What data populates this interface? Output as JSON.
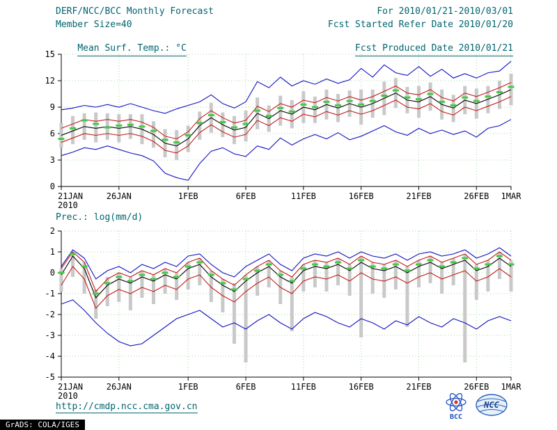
{
  "header": {
    "title": "DERF/NCC/BCC Monthly Forecast",
    "period": "For 2010/01/21-2010/03/01",
    "member_size": "Member Size=40",
    "refer_date": "Fcst Started Refer Date 2010/01/20",
    "variable_top": "Mean Surf. Temp.: °C",
    "produced_date": "Fcst Produced Date 2010/01/21"
  },
  "footer": {
    "url": "http://cmdp.ncc.cma.gov.cn",
    "grads": "GrADS: COLA/IGES",
    "bcc_label": "BCC",
    "ncc_label": "NCC"
  },
  "colors": {
    "text_teal": "#00646e",
    "axis": "#000000",
    "tick_label": "#000000",
    "grid": "#9fd49f",
    "bar": "#c9c9c9",
    "blue": "#1010c0",
    "red": "#c41a1a",
    "green": "#46c846",
    "mean": "#000000"
  },
  "chart_data": [
    {
      "type": "line",
      "title": "Mean Surf. Temp.: °C",
      "ylabel": "",
      "ylim": [
        0,
        15
      ],
      "yticks": [
        0,
        3,
        6,
        9,
        12,
        15
      ],
      "grid": true,
      "x_count": 40,
      "x_tick_labels": [
        "21JAN",
        "26JAN",
        "1FEB",
        "6FEB",
        "11FEB",
        "16FEB",
        "21FEB",
        "26FEB",
        "1MAR"
      ],
      "x_tick_indices": [
        0,
        5,
        11,
        16,
        21,
        26,
        31,
        36,
        39
      ],
      "x_year_label": "2010",
      "series": [
        {
          "name": "ensemble-max",
          "color": "#1010c0",
          "values": [
            8.7,
            8.9,
            9.2,
            9.0,
            9.3,
            9.0,
            9.4,
            9.0,
            8.6,
            8.3,
            8.8,
            9.2,
            9.6,
            10.4,
            9.4,
            8.9,
            9.6,
            11.9,
            11.2,
            12.4,
            11.4,
            12.0,
            11.6,
            12.2,
            11.7,
            12.1,
            13.4,
            12.4,
            13.8,
            12.9,
            12.6,
            13.6,
            12.5,
            13.3,
            12.3,
            12.8,
            12.3,
            12.9,
            13.1,
            14.2
          ]
        },
        {
          "name": "upper-bound",
          "color": "#c41a1a",
          "values": [
            6.6,
            7.1,
            7.6,
            7.4,
            7.6,
            7.4,
            7.6,
            7.3,
            6.7,
            5.7,
            5.4,
            6.2,
            7.7,
            8.6,
            7.8,
            7.2,
            7.5,
            9.1,
            8.5,
            9.4,
            9.0,
            9.8,
            9.5,
            10.1,
            9.7,
            10.2,
            9.8,
            10.2,
            10.8,
            11.4,
            10.6,
            10.4,
            11.0,
            10.1,
            9.7,
            10.6,
            10.2,
            10.7,
            11.2,
            11.8
          ]
        },
        {
          "name": "ensemble-mean",
          "color": "#000000",
          "values": [
            5.8,
            6.3,
            6.8,
            6.6,
            6.8,
            6.6,
            6.8,
            6.5,
            5.9,
            4.9,
            4.6,
            5.4,
            6.9,
            7.8,
            7.0,
            6.4,
            6.7,
            8.3,
            7.7,
            8.6,
            8.2,
            9.0,
            8.7,
            9.3,
            8.9,
            9.4,
            9.0,
            9.4,
            10.0,
            10.6,
            9.8,
            9.6,
            10.2,
            9.3,
            8.9,
            9.8,
            9.4,
            9.9,
            10.4,
            11.0
          ]
        },
        {
          "name": "lower-bound",
          "color": "#c41a1a",
          "values": [
            5.0,
            5.5,
            6.0,
            5.8,
            6.0,
            5.8,
            6.0,
            5.7,
            5.1,
            4.1,
            3.8,
            4.6,
            6.1,
            7.0,
            6.2,
            5.6,
            5.9,
            7.5,
            6.9,
            7.8,
            7.4,
            8.2,
            7.9,
            8.5,
            8.1,
            8.6,
            8.2,
            8.6,
            9.2,
            9.8,
            9.0,
            8.8,
            9.4,
            8.5,
            8.1,
            9.0,
            8.6,
            9.1,
            9.6,
            10.2
          ]
        },
        {
          "name": "ensemble-min",
          "color": "#1010c0",
          "values": [
            3.5,
            3.9,
            4.4,
            4.2,
            4.6,
            4.2,
            3.8,
            3.5,
            2.9,
            1.5,
            1.0,
            0.7,
            2.6,
            4.0,
            4.4,
            3.7,
            3.4,
            4.6,
            4.2,
            5.5,
            4.7,
            5.4,
            5.9,
            5.4,
            6.1,
            5.3,
            5.7,
            6.3,
            6.9,
            6.2,
            5.8,
            6.6,
            6.0,
            6.4,
            5.9,
            6.3,
            5.6,
            6.6,
            6.9,
            7.6
          ]
        }
      ],
      "markers": {
        "name": "best-estimate",
        "color": "#46c846",
        "values": [
          5.4,
          6.6,
          7.5,
          7.1,
          6.7,
          6.9,
          7.0,
          6.8,
          6.3,
          5.3,
          5.0,
          5.8,
          7.2,
          8.1,
          7.3,
          6.7,
          7.1,
          8.6,
          8.0,
          8.9,
          8.5,
          9.3,
          9.0,
          9.6,
          9.2,
          9.7,
          9.3,
          9.7,
          10.3,
          10.9,
          10.1,
          9.9,
          10.5,
          9.6,
          9.2,
          10.1,
          9.7,
          10.2,
          10.7,
          11.3
        ]
      },
      "spread_bars": {
        "color": "#c9c9c9",
        "high": [
          7.2,
          8.0,
          8.3,
          8.4,
          8.3,
          8.2,
          8.2,
          8.2,
          7.4,
          6.5,
          6.4,
          6.9,
          8.5,
          9.5,
          8.4,
          8.0,
          8.6,
          10.1,
          9.2,
          10.3,
          9.8,
          10.8,
          10.2,
          11.0,
          10.5,
          10.9,
          11.0,
          11.0,
          11.9,
          12.3,
          11.3,
          11.4,
          11.8,
          11.0,
          10.4,
          11.4,
          11.1,
          11.4,
          12.0,
          12.8
        ],
        "low": [
          4.4,
          4.8,
          5.3,
          5.0,
          5.3,
          5.0,
          5.4,
          4.8,
          4.4,
          3.3,
          3.0,
          3.9,
          5.3,
          6.1,
          5.6,
          4.8,
          5.1,
          6.5,
          6.2,
          6.9,
          6.6,
          7.2,
          7.2,
          7.6,
          7.3,
          7.9,
          7.0,
          7.8,
          8.1,
          8.9,
          8.3,
          7.8,
          8.6,
          7.6,
          7.3,
          8.2,
          7.7,
          8.3,
          8.8,
          9.2
        ]
      }
    },
    {
      "type": "line",
      "title": "Prec.: log(mm/d)",
      "ylabel": "",
      "ylim": [
        -5,
        2
      ],
      "yticks": [
        -5,
        -4,
        -3,
        -2,
        -1,
        0,
        1,
        2
      ],
      "grid": true,
      "x_count": 40,
      "x_tick_labels": [
        "21JAN",
        "26JAN",
        "1FEB",
        "6FEB",
        "11FEB",
        "16FEB",
        "21FEB",
        "26FEB",
        "1MAR"
      ],
      "x_tick_indices": [
        0,
        5,
        11,
        16,
        21,
        26,
        31,
        36,
        39
      ],
      "x_year_label": "2010",
      "series": [
        {
          "name": "ensemble-max",
          "color": "#1010c0",
          "values": [
            0.3,
            1.1,
            0.7,
            -0.3,
            0.1,
            0.3,
            0.0,
            0.4,
            0.2,
            0.5,
            0.3,
            0.8,
            0.9,
            0.4,
            0.0,
            -0.2,
            0.3,
            0.6,
            0.9,
            0.4,
            0.1,
            0.7,
            0.9,
            0.8,
            1.0,
            0.7,
            1.0,
            0.8,
            0.7,
            0.9,
            0.6,
            0.9,
            1.0,
            0.8,
            0.9,
            1.1,
            0.7,
            0.9,
            1.2,
            0.8
          ]
        },
        {
          "name": "upper-bound",
          "color": "#c41a1a",
          "values": [
            0.2,
            1.0,
            0.5,
            -0.9,
            -0.3,
            0.0,
            -0.2,
            0.1,
            -0.1,
            0.2,
            0.0,
            0.5,
            0.7,
            0.1,
            -0.3,
            -0.6,
            -0.1,
            0.3,
            0.6,
            0.1,
            -0.2,
            0.4,
            0.6,
            0.5,
            0.7,
            0.4,
            0.8,
            0.5,
            0.4,
            0.6,
            0.3,
            0.6,
            0.8,
            0.5,
            0.7,
            0.9,
            0.4,
            0.6,
            1.0,
            0.6
          ]
        },
        {
          "name": "ensemble-mean",
          "color": "#000000",
          "values": [
            -0.1,
            0.8,
            0.2,
            -1.2,
            -0.6,
            -0.3,
            -0.5,
            -0.2,
            -0.4,
            -0.1,
            -0.3,
            0.2,
            0.4,
            -0.2,
            -0.6,
            -0.9,
            -0.4,
            0.0,
            0.3,
            -0.2,
            -0.5,
            0.1,
            0.3,
            0.2,
            0.4,
            0.1,
            0.5,
            0.2,
            0.1,
            0.3,
            0.0,
            0.3,
            0.5,
            0.2,
            0.4,
            0.6,
            0.1,
            0.3,
            0.7,
            0.3
          ]
        },
        {
          "name": "lower-bound",
          "color": "#c41a1a",
          "values": [
            -0.6,
            0.3,
            -0.3,
            -1.7,
            -1.1,
            -0.8,
            -1.0,
            -0.7,
            -0.9,
            -0.6,
            -0.8,
            -0.3,
            -0.1,
            -0.7,
            -1.1,
            -1.4,
            -0.9,
            -0.5,
            -0.2,
            -0.7,
            -1.0,
            -0.4,
            -0.2,
            -0.3,
            -0.1,
            -0.4,
            0.0,
            -0.3,
            -0.4,
            -0.2,
            -0.5,
            -0.2,
            0.0,
            -0.3,
            -0.1,
            0.1,
            -0.4,
            -0.2,
            0.2,
            -0.2
          ]
        },
        {
          "name": "ensemble-min",
          "color": "#1010c0",
          "values": [
            -1.5,
            -1.3,
            -1.8,
            -2.4,
            -2.9,
            -3.3,
            -3.5,
            -3.4,
            -3.0,
            -2.6,
            -2.2,
            -2.0,
            -1.8,
            -2.2,
            -2.6,
            -2.4,
            -2.7,
            -2.3,
            -2.0,
            -2.4,
            -2.7,
            -2.2,
            -1.9,
            -2.1,
            -2.4,
            -2.6,
            -2.2,
            -2.4,
            -2.7,
            -2.3,
            -2.5,
            -2.1,
            -2.4,
            -2.6,
            -2.2,
            -2.4,
            -2.7,
            -2.3,
            -2.1,
            -2.3
          ]
        }
      ],
      "markers": {
        "name": "best-estimate",
        "color": "#46c846",
        "values": [
          0.0,
          0.9,
          0.3,
          -1.0,
          -0.5,
          -0.2,
          -0.4,
          -0.1,
          -0.3,
          0.0,
          -0.2,
          0.3,
          0.5,
          -0.1,
          -0.5,
          -0.8,
          -0.3,
          0.1,
          0.4,
          -0.1,
          -0.4,
          0.2,
          0.4,
          0.3,
          0.5,
          0.2,
          0.6,
          0.3,
          0.2,
          0.4,
          0.1,
          0.4,
          0.6,
          0.3,
          0.5,
          0.7,
          0.2,
          0.4,
          0.8,
          0.4
        ]
      },
      "spread_bars": {
        "color": "#c9c9c9",
        "high": [
          0.2,
          1.0,
          0.5,
          -0.8,
          -0.2,
          0.0,
          -0.2,
          0.1,
          -0.1,
          0.2,
          0.0,
          0.5,
          0.7,
          0.1,
          -0.3,
          -0.5,
          -0.1,
          0.3,
          0.6,
          0.1,
          -0.2,
          0.4,
          0.6,
          0.5,
          0.7,
          0.4,
          0.8,
          0.5,
          0.4,
          0.6,
          0.3,
          0.6,
          0.8,
          0.5,
          0.7,
          0.9,
          0.4,
          0.6,
          1.0,
          0.6
        ],
        "low": [
          -0.9,
          -0.2,
          -1.0,
          -2.2,
          -1.6,
          -1.4,
          -1.8,
          -1.2,
          -1.5,
          -1.0,
          -1.3,
          -0.8,
          -0.6,
          -1.4,
          -1.9,
          -3.4,
          -4.3,
          -1.1,
          -0.7,
          -1.5,
          -2.8,
          -0.9,
          -0.7,
          -0.9,
          -0.6,
          -1.1,
          -3.1,
          -1.0,
          -1.2,
          -0.8,
          -2.6,
          -0.7,
          -0.5,
          -1.0,
          -0.6,
          -4.3,
          -1.3,
          -0.9,
          -0.3,
          -0.9
        ]
      }
    }
  ]
}
